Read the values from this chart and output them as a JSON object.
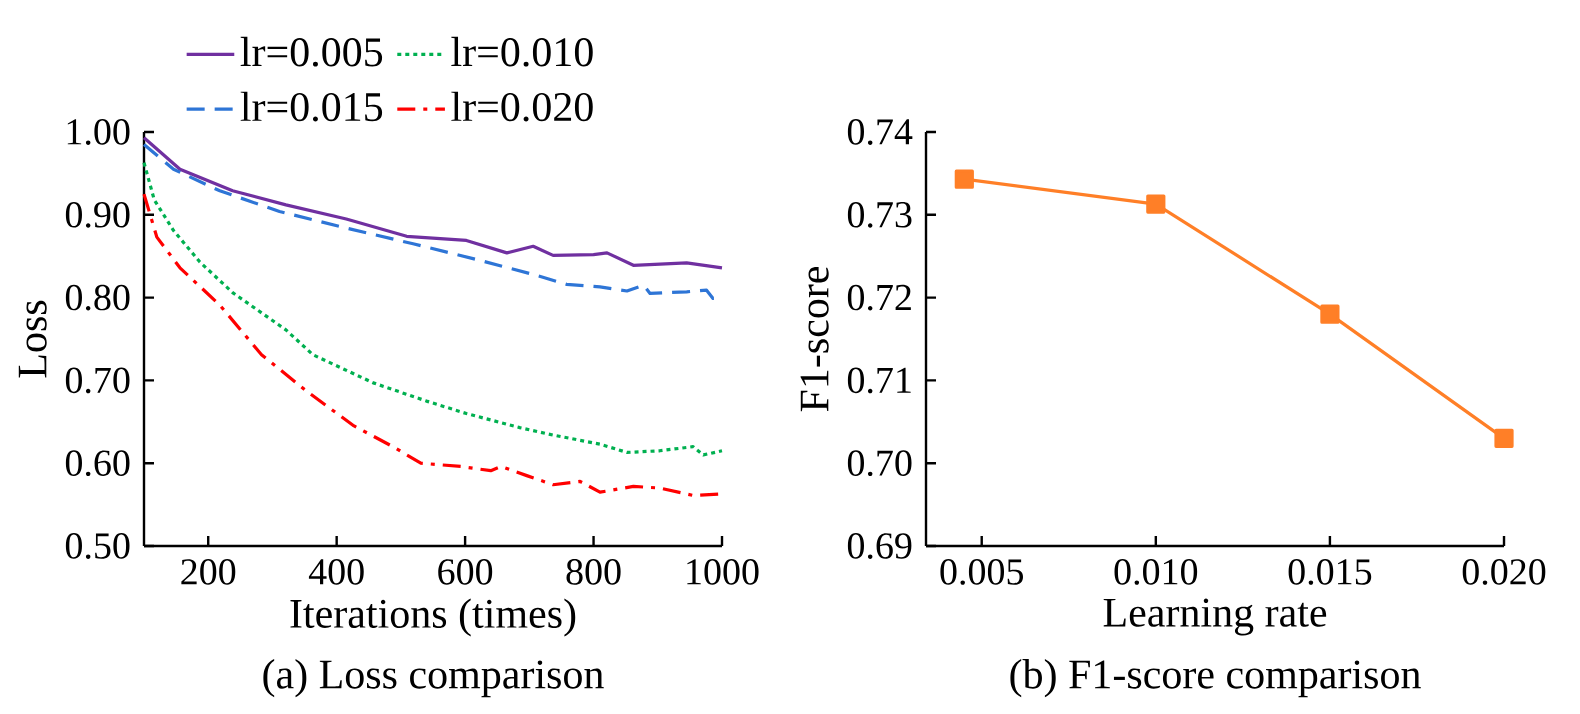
{
  "chart_data": [
    {
      "type": "line",
      "title": "(a) Loss comparison",
      "xlabel": "Iterations (times)",
      "ylabel": "Loss",
      "xlim": [
        100,
        1000
      ],
      "ylim": [
        0.5,
        1.0
      ],
      "xticks": [
        200,
        400,
        600,
        800,
        1000
      ],
      "yticks": [
        {
          "value": 0.5,
          "label": "0.50"
        },
        {
          "value": 0.6,
          "label": "0.60"
        },
        {
          "value": 0.7,
          "label": "0.70"
        },
        {
          "value": 0.8,
          "label": "0.80"
        },
        {
          "value": 0.9,
          "label": "0.90"
        },
        {
          "value": 1.0,
          "label": "1.00"
        }
      ],
      "legend": "top",
      "grid": false,
      "marker": "none",
      "series": [
        {
          "name": "lr=0.005",
          "color": "#7030a0",
          "line_style": "solid",
          "x": [
            100,
            156,
            238,
            321,
            415,
            509,
            602,
            665,
            706,
            737,
            800,
            821,
            862,
            945,
            1000
          ],
          "values": [
            0.993,
            0.955,
            0.929,
            0.912,
            0.895,
            0.874,
            0.869,
            0.854,
            0.862,
            0.851,
            0.852,
            0.854,
            0.839,
            0.842,
            0.836
          ]
        },
        {
          "name": "lr=0.010",
          "color": "#00b050",
          "line_style": "dotted",
          "x": [
            100,
            116,
            146,
            187,
            238,
            321,
            363,
            457,
            540,
            602,
            685,
            737,
            810,
            852,
            903,
            955,
            971,
            1000
          ],
          "values": [
            0.963,
            0.918,
            0.881,
            0.843,
            0.806,
            0.761,
            0.731,
            0.697,
            0.675,
            0.66,
            0.643,
            0.634,
            0.623,
            0.613,
            0.615,
            0.62,
            0.61,
            0.615
          ]
        },
        {
          "name": "lr=0.015",
          "color": "#2e75d6",
          "line_style": "dashed",
          "x": [
            100,
            146,
            218,
            311,
            415,
            519,
            623,
            706,
            758,
            810,
            852,
            878,
            888,
            945,
            976,
            986,
            1000
          ],
          "values": [
            0.985,
            0.955,
            0.929,
            0.904,
            0.884,
            0.865,
            0.845,
            0.828,
            0.816,
            0.813,
            0.808,
            0.815,
            0.805,
            0.807,
            0.809,
            0.799,
            0.799
          ]
        },
        {
          "name": "lr=0.020",
          "color": "#ff0000",
          "line_style": "dashdot",
          "x": [
            100,
            120,
            156,
            218,
            283,
            355,
            427,
            490,
            531,
            594,
            640,
            656,
            696,
            737,
            779,
            810,
            862,
            903,
            955,
            1000
          ],
          "values": [
            0.925,
            0.873,
            0.836,
            0.791,
            0.731,
            0.686,
            0.645,
            0.619,
            0.6,
            0.596,
            0.591,
            0.596,
            0.585,
            0.574,
            0.578,
            0.565,
            0.572,
            0.57,
            0.561,
            0.563
          ]
        }
      ]
    },
    {
      "type": "line",
      "title": "(b) F1-score comparison",
      "xlabel": "Learning rate",
      "ylabel": "F1-score",
      "xlim": [
        0.0034,
        0.02
      ],
      "ylim": [
        0.69,
        0.74
      ],
      "xticks": [
        {
          "value": 0.005,
          "label": "0.005"
        },
        {
          "value": 0.01,
          "label": "0.010"
        },
        {
          "value": 0.015,
          "label": "0.015"
        },
        {
          "value": 0.02,
          "label": "0.020"
        }
      ],
      "yticks": [
        {
          "value": 0.69,
          "label": "0.69"
        },
        {
          "value": 0.7,
          "label": "0.70"
        },
        {
          "value": 0.71,
          "label": "0.71"
        },
        {
          "value": 0.72,
          "label": "0.72"
        },
        {
          "value": 0.73,
          "label": "0.73"
        },
        {
          "value": 0.74,
          "label": "0.74"
        }
      ],
      "grid": false,
      "marker": "square",
      "legend": false,
      "series": [
        {
          "color": "#ff7f27",
          "x": [
            0.0045,
            0.01,
            0.015,
            0.02
          ],
          "values": [
            0.7343,
            0.7313,
            0.718,
            0.703
          ]
        }
      ]
    }
  ]
}
